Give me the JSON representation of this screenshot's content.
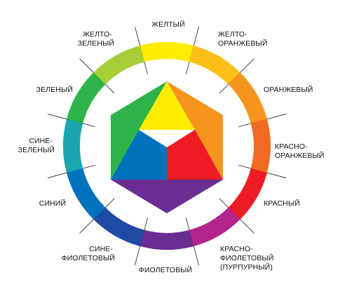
{
  "labels": {
    "yellow": "ЖЕЛТЫЙ",
    "yellow_orange": [
      "ЖЕЛТО-",
      "ОРАНЖЕВЫЙ"
    ],
    "orange": "ОРАНЖЕВЫЙ",
    "red_orange": [
      "КРАСНО-",
      "ОРАНЖЕВЫЙ"
    ],
    "red": "КРАСНЫЙ",
    "red_violet": [
      "КРАСНО-",
      "ФИОЛЕТОВЫЙ",
      "(ПУРПУРНЫЙ)"
    ],
    "violet": "ФИОЛЕТОВЫЙ",
    "blue_violet": [
      "СИНЕ-",
      "ФИОЛЕТОВЫЙ"
    ],
    "blue": "СИНИЙ",
    "blue_green": [
      "СИНЕ-",
      "ЗЕЛЕНЫЙ"
    ],
    "green": "ЗЕЛЕНЫЙ",
    "yellow_green": [
      "ЖЕЛТО-",
      "ЗЕЛЕНЫЙ"
    ]
  },
  "segments": [
    {
      "id": "yellow",
      "color": "#FFEC00"
    },
    {
      "id": "yellow-orange",
      "color": "#FCBF17"
    },
    {
      "id": "orange",
      "color": "#F7941D"
    },
    {
      "id": "red-orange",
      "color": "#F16A22"
    },
    {
      "id": "red",
      "color": "#ED1C24"
    },
    {
      "id": "red-violet",
      "color": "#B3248D"
    },
    {
      "id": "violet",
      "color": "#6A2D91"
    },
    {
      "id": "blue-violet",
      "color": "#1F4BA5"
    },
    {
      "id": "blue",
      "color": "#0072BC"
    },
    {
      "id": "blue-green",
      "color": "#1AA5AF"
    },
    {
      "id": "green",
      "color": "#2DB34A"
    },
    {
      "id": "yellow-green",
      "color": "#A5CE39"
    }
  ],
  "primary_colors": {
    "yellow": "#FFEC00",
    "red": "#ED1C24",
    "blue": "#0072BC"
  },
  "secondary_colors": {
    "orange": "#F7941D",
    "green": "#2DB34A",
    "violet": "#6A2D91"
  }
}
